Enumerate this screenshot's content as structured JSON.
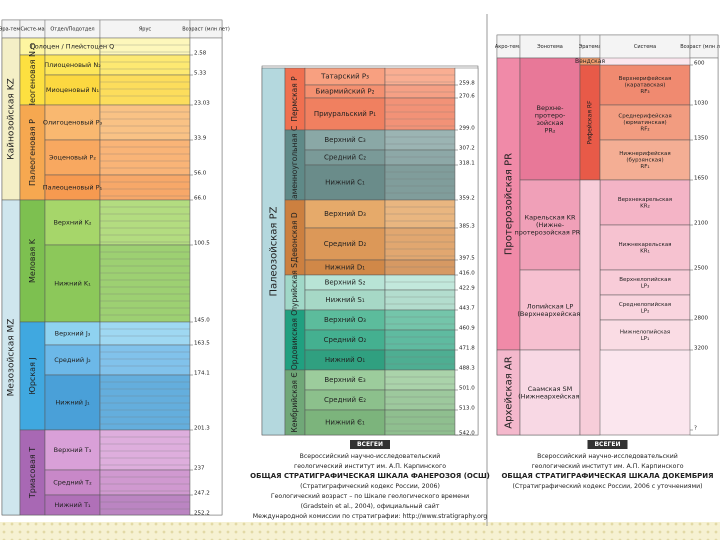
{
  "panels": [
    {
      "headers": [
        "Эра-тема",
        "Систе-ма",
        "Отдел/Подотдел",
        "Ярус",
        "Возраст (млн лет)"
      ],
      "columns": [
        [
          {
            "text": "Кайнозойская KZ",
            "color": "#f4efc6"
          },
          {
            "text": "Мезозойская MZ",
            "color": "#cfe6ee"
          }
        ],
        [
          {
            "text": "Q",
            "color": "#fdf5a0"
          },
          {
            "text": "Неогеновая N",
            "color": "#fde040"
          },
          {
            "text": "Палеогеновая P",
            "color": "#f6a850"
          },
          {
            "text": "Меловая K",
            "color": "#7dc050"
          },
          {
            "text": "Юрская J",
            "color": "#40a8e0"
          },
          {
            "text": "Триасовая T",
            "color": "#a868b4"
          }
        ],
        [
          {
            "text": "Голоцен / Плейстоцен Q",
            "color": "#fdf6b0"
          },
          {
            "text": "Плиоценовый N₂",
            "color": "#fde65a"
          },
          {
            "text": "Миоценовый N₁",
            "color": "#fcd840"
          },
          {
            "text": "Олигоценовый P₃",
            "color": "#f9b870"
          },
          {
            "text": "Эоценовый P₂",
            "color": "#f8a860"
          },
          {
            "text": "Палеоценовый P₁",
            "color": "#f69a50"
          },
          {
            "text": "Верхний K₂",
            "color": "#a6d66a"
          },
          {
            "text": "Нижний K₁",
            "color": "#8cc85a"
          },
          {
            "text": "Верхний J₃",
            "color": "#8fd2f0"
          },
          {
            "text": "Средний J₂",
            "color": "#6cb8e8"
          },
          {
            "text": "Нижний J₁",
            "color": "#4aa0d8"
          },
          {
            "text": "Верхний T₃",
            "color": "#d9a0d8"
          },
          {
            "text": "Средний T₂",
            "color": "#c888c8"
          },
          {
            "text": "Нижний T₁",
            "color": "#b070b8"
          }
        ]
      ],
      "ages": [
        "2.58",
        "5.33",
        "23.03",
        "33.9",
        "56.0",
        "66.0",
        "100.5",
        "145.0",
        "163.5",
        "174.1",
        "201.3",
        "237",
        "247.2",
        "252.2"
      ]
    },
    {
      "columns": [
        [
          {
            "text": "Палеозойская PZ",
            "color": "#b4d8de"
          }
        ],
        [
          {
            "text": "Пермская P",
            "color": "#f07050"
          },
          {
            "text": "Каменноугольная C",
            "color": "#5f8a88"
          },
          {
            "text": "Девонская D",
            "color": "#cc8040"
          },
          {
            "text": "Силурийская S",
            "color": "#a0d8c8"
          },
          {
            "text": "Ордовикская O",
            "color": "#20a080"
          },
          {
            "text": "Кембрийская Є",
            "color": "#70a878"
          }
        ],
        [
          {
            "text": "Татарский P₃",
            "color": "#f8a080"
          },
          {
            "text": "Биармийский P₂",
            "color": "#f49070"
          },
          {
            "text": "Приуральский P₁",
            "color": "#f08060"
          },
          {
            "text": "Верхний C₃",
            "color": "#8aa8a6"
          },
          {
            "text": "Средний C₂",
            "color": "#7a9a98"
          },
          {
            "text": "Нижний C₁",
            "color": "#6a8c8a"
          },
          {
            "text": "Верхний D₃",
            "color": "#e6aa6a"
          },
          {
            "text": "Средний D₂",
            "color": "#dc9858"
          },
          {
            "text": "Нижний D₁",
            "color": "#d08848"
          },
          {
            "text": "Верхний S₂",
            "color": "#b8e4d6"
          },
          {
            "text": "Нижний S₁",
            "color": "#a6d8c6"
          },
          {
            "text": "Верхний O₃",
            "color": "#5cbc9c"
          },
          {
            "text": "Средний O₂",
            "color": "#44b090"
          },
          {
            "text": "Нижний O₁",
            "color": "#30a080"
          },
          {
            "text": "Верхний Є₃",
            "color": "#9ccc9c"
          },
          {
            "text": "Средний Є₂",
            "color": "#8cc08c"
          },
          {
            "text": "Нижний Є₁",
            "color": "#7cb47c"
          }
        ]
      ],
      "ages": [
        "259.8",
        "270.6",
        "299.0",
        "307.2",
        "318.1",
        "359.2",
        "385.3",
        "397.5",
        "416.0",
        "422.9",
        "443.7",
        "460.9",
        "471.8",
        "488.3",
        "501.0",
        "513.0",
        "542.0"
      ],
      "footer": {
        "logo": "ВСЕГЕИ",
        "lines": [
          "Всероссийский научно-исследовательский",
          "геологический институт им. А.П. Карпинского",
          "ОБЩАЯ СТРАТИГРАФИЧЕСКАЯ ШКАЛА ФАНЕРОЗОЯ (ОСШ)",
          "(Стратиграфический кодекс России, 2006)",
          "Геологический возраст – по Шкале геологического времени",
          "(Gradstein et al., 2004), официальный сайт",
          "Международной комиссии по стратиграфии: http://www.stratigraphy.org"
        ]
      }
    },
    {
      "headers": [
        "Акро-тема",
        "Эонотема",
        "Эратема",
        "Система",
        "Возраст (млн лет)"
      ],
      "columns": [
        [
          {
            "text": "Протерозойская PR",
            "color": "#f08aa8"
          },
          {
            "text": "Архейская AR",
            "color": "#f4b8cc"
          }
        ],
        [
          {
            "text": [
              "Верхне-",
              "протеро-",
              "зойская",
              "PR₂"
            ],
            "color": "#e87898"
          },
          {
            "text": [
              "Карельская KR",
              "(Нижне-",
              "протерозойская PR₁)"
            ],
            "color": "#f0a0b8"
          },
          {
            "text": [
              "Лопийская LP",
              "(Верхнеархейская)"
            ],
            "color": "#f6c0d0"
          },
          {
            "text": [
              "Саамская SM",
              "(Нижнеархейская)"
            ],
            "color": "#f8d8e4"
          }
        ],
        [
          {
            "text": "Вендская",
            "color": "#f4a070"
          },
          {
            "text": "Рифейская RF",
            "color": "#e85a48"
          }
        ],
        [
          {
            "text": [
              "Верхнерифейская",
              "(каратавская)",
              "RF₃"
            ],
            "color": "#f08a70"
          },
          {
            "text": [
              "Среднерифейская",
              "(юрматинская)",
              "RF₂"
            ],
            "color": "#f29c80"
          },
          {
            "text": [
              "Нижнерифейская",
              "(бурзянская)",
              "RF₁"
            ],
            "color": "#f4ae94"
          },
          {
            "text": [
              "Верхнекарельская",
              "KR₂"
            ],
            "color": "#f4b4c6"
          },
          {
            "text": [
              "Нижнекарельская",
              "KR₁"
            ],
            "color": "#f6c2d0"
          },
          {
            "text": [
              "Верхнелопийская",
              "LP₃"
            ],
            "color": "#f8ccd8"
          },
          {
            "text": [
              "Среднелопийская",
              "LP₂"
            ],
            "color": "#f9d4de"
          },
          {
            "text": [
              "Нижнелопийская",
              "LP₁"
            ],
            "color": "#fadce4"
          }
        ]
      ],
      "ages": [
        "600",
        "1030",
        "1350",
        "1650",
        "2100",
        "2500",
        "2800",
        "3200",
        "?"
      ],
      "footer": {
        "logo": "ВСЕГЕИ",
        "lines": [
          "Всероссийский научно-исследовательский",
          "геологический институт им. А.П. Карпинского",
          "ОБЩАЯ СТРАТИГРАФИЧЕСКАЯ ШКАЛА ДОКЕМБРИЯ",
          "(Стратиграфический кодекс России, 2006 с уточнениями)"
        ]
      }
    }
  ]
}
